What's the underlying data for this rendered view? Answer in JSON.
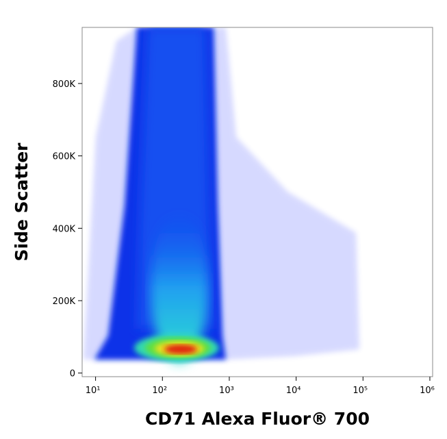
{
  "chart_data": {
    "type": "density",
    "x_label": "CD71 Alexa Fluor® 700",
    "y_label": "Side Scatter",
    "xscale": "log",
    "xlim": [
      6.3,
      1100000
    ],
    "xticks": [
      {
        "value": 10,
        "label": "10¹"
      },
      {
        "value": 100,
        "label": "10²"
      },
      {
        "value": 1000,
        "label": "10³"
      },
      {
        "value": 10000,
        "label": "10⁴"
      },
      {
        "value": 100000,
        "label": "10⁵"
      },
      {
        "value": 1000000,
        "label": "10⁶"
      }
    ],
    "ylim": [
      -10000,
      955000
    ],
    "yticks": [
      0,
      {
        "value": 200000,
        "label": "200K"
      },
      {
        "value": 400000,
        "label": "400K"
      },
      {
        "value": 600000,
        "label": "600K"
      },
      {
        "value": 800000,
        "label": "800K"
      }
    ]
  }
}
